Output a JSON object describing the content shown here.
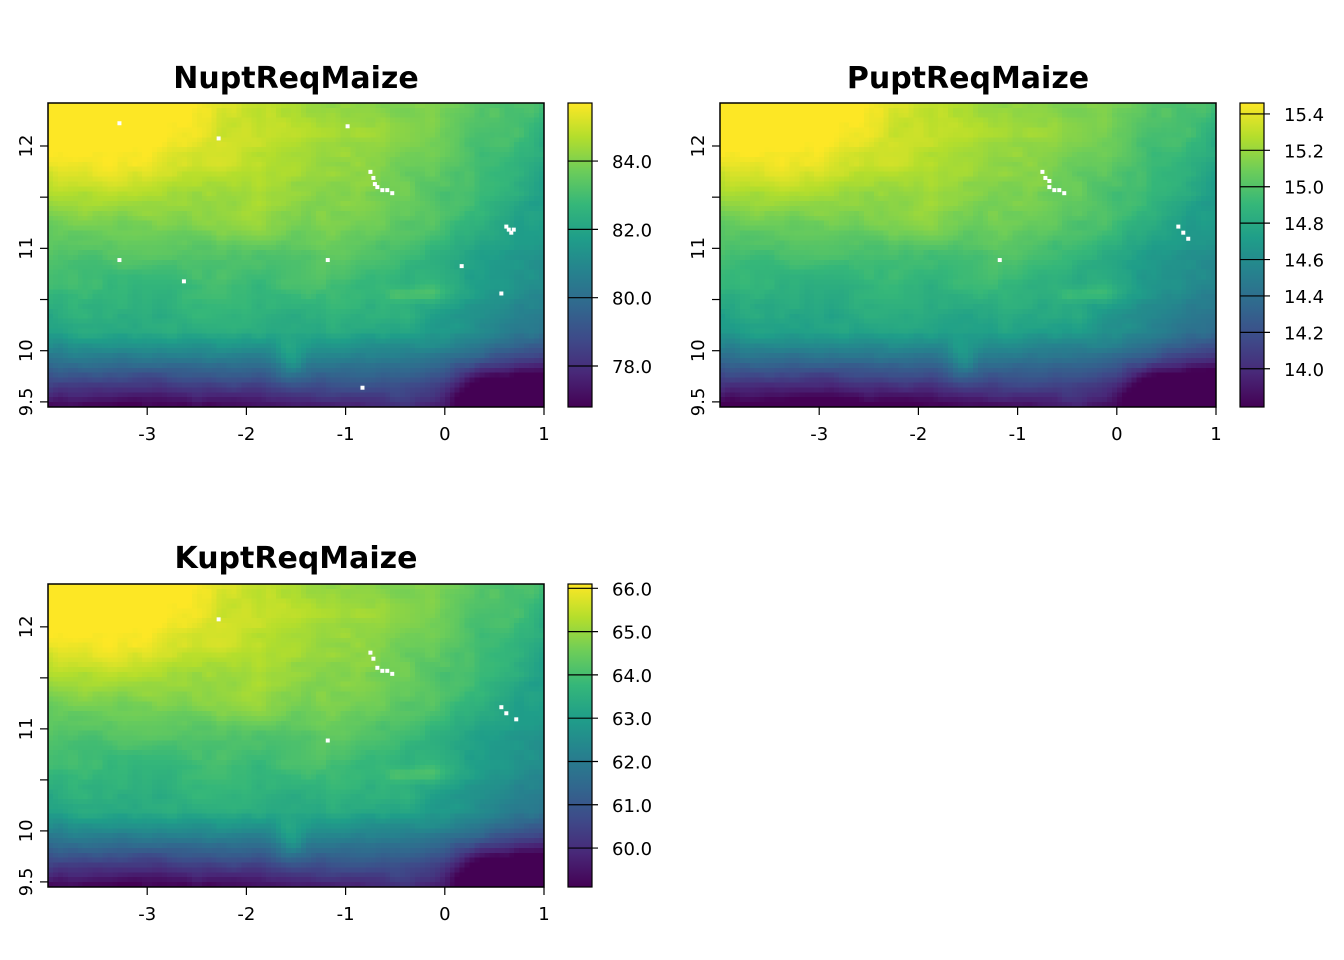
{
  "colors": {
    "palette": "viridis",
    "ramp": [
      "#440154",
      "#482878",
      "#3E4A89",
      "#31688E",
      "#26828E",
      "#1F9E89",
      "#35B779",
      "#6DCD59",
      "#B4DE2C",
      "#FDE725"
    ],
    "na": "#FFFFFF"
  },
  "chart_data": [
    {
      "type": "heatmap",
      "title": "NuptReqMaize",
      "xlim": [
        -4,
        1
      ],
      "ylim": [
        9.45,
        12.42
      ],
      "x_ticks": [
        -3,
        -2,
        -1,
        0,
        1
      ],
      "x_tick_labels": [
        "-3",
        "-2",
        "-1",
        "0",
        "1"
      ],
      "y_ticks": [
        9.5,
        10,
        10.5,
        11,
        11.5,
        12
      ],
      "y_tick_labels": [
        "9.5",
        "10",
        "",
        "11",
        "",
        "12"
      ],
      "value_range": [
        76.8,
        85.7
      ],
      "legend": {
        "position": "right",
        "ticks": [
          78.0,
          80.0,
          82.0,
          84.0
        ],
        "tick_labels": [
          "78.0",
          "80.0",
          "82.0",
          "84.0"
        ]
      },
      "grid": false
    },
    {
      "type": "heatmap",
      "title": "PuptReqMaize",
      "xlim": [
        -4,
        1
      ],
      "ylim": [
        9.45,
        12.42
      ],
      "x_ticks": [
        -3,
        -2,
        -1,
        0,
        1
      ],
      "x_tick_labels": [
        "-3",
        "-2",
        "-1",
        "0",
        "1"
      ],
      "y_ticks": [
        9.5,
        10,
        10.5,
        11,
        11.5,
        12
      ],
      "y_tick_labels": [
        "9.5",
        "10",
        "",
        "11",
        "",
        "12"
      ],
      "value_range": [
        13.79,
        15.46
      ],
      "legend": {
        "position": "right",
        "ticks": [
          14.0,
          14.2,
          14.4,
          14.6,
          14.8,
          15.0,
          15.2,
          15.4
        ],
        "tick_labels": [
          "14.0",
          "14.2",
          "14.4",
          "14.6",
          "14.8",
          "15.0",
          "15.2",
          "15.4"
        ]
      },
      "grid": false
    },
    {
      "type": "heatmap",
      "title": "KuptReqMaize",
      "xlim": [
        -4,
        1
      ],
      "ylim": [
        9.45,
        12.42
      ],
      "x_ticks": [
        -3,
        -2,
        -1,
        0,
        1
      ],
      "x_tick_labels": [
        "-3",
        "-2",
        "-1",
        "0",
        "1"
      ],
      "y_ticks": [
        9.5,
        10,
        10.5,
        11,
        11.5,
        12
      ],
      "y_tick_labels": [
        "9.5",
        "10",
        "",
        "11",
        "",
        "12"
      ],
      "value_range": [
        59.1,
        66.1
      ],
      "legend": {
        "position": "right",
        "ticks": [
          60.0,
          61.0,
          62.0,
          63.0,
          64.0,
          65.0,
          66.0
        ],
        "tick_labels": [
          "60.0",
          "61.0",
          "62.0",
          "63.0",
          "64.0",
          "65.0",
          "66.0"
        ]
      },
      "grid": false
    }
  ]
}
